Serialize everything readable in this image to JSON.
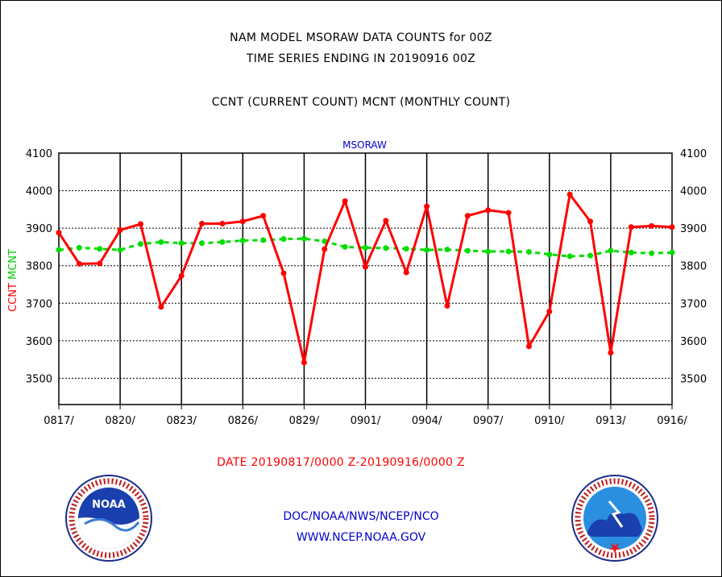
{
  "header": {
    "line1": "NAM MODEL MSORAW DATA COUNTS for 00Z",
    "line2": "TIME SERIES ENDING IN 20190916 00Z",
    "line3": "CCNT (CURRENT COUNT) MCNT (MONTHLY COUNT)"
  },
  "footer": {
    "date_range": "DATE 20190817/0000 Z-20190916/0000 Z",
    "org": "DOC/NOAA/NWS/NCEP/NCO",
    "url": "WWW.NCEP.NOAA.GOV"
  },
  "logos": {
    "left": {
      "name": "noaa-logo",
      "center_text": "NOAA"
    },
    "right": {
      "name": "nws-logo"
    }
  },
  "chart_data": {
    "type": "line",
    "title": "MSORAW",
    "ylabel_left": [
      {
        "text": "CCNT",
        "color": "#ff0000"
      },
      {
        "text": "MCNT",
        "color": "#00cc00"
      }
    ],
    "ylim": [
      3430,
      4100
    ],
    "yticks": [
      3500,
      3600,
      3700,
      3800,
      3900,
      4000,
      4100
    ],
    "ytick_labels": [
      "3500",
      "3600",
      "3700",
      "3800",
      "3900",
      "4000",
      "4100"
    ],
    "xlim": [
      "2019-08-17",
      "2019-09-16"
    ],
    "xticks": [
      "2019-08-17",
      "2019-08-20",
      "2019-08-23",
      "2019-08-26",
      "2019-08-29",
      "2019-09-01",
      "2019-09-04",
      "2019-09-07",
      "2019-09-10",
      "2019-09-13",
      "2019-09-16"
    ],
    "xtick_labels": [
      "0817/",
      "0820/",
      "0823/",
      "0826/",
      "0829/",
      "0901/",
      "0904/",
      "0907/",
      "0910/",
      "0913/",
      "0916/"
    ],
    "grid": true,
    "series": [
      {
        "name": "CCNT",
        "color": "#ff0000",
        "style": "solid",
        "x": [
          "2019-08-17",
          "2019-08-18",
          "2019-08-19",
          "2019-08-20",
          "2019-08-21",
          "2019-08-22",
          "2019-08-23",
          "2019-08-24",
          "2019-08-25",
          "2019-08-26",
          "2019-08-27",
          "2019-08-28",
          "2019-08-29",
          "2019-08-30",
          "2019-08-31",
          "2019-09-01",
          "2019-09-02",
          "2019-09-03",
          "2019-09-04",
          "2019-09-05",
          "2019-09-06",
          "2019-09-07",
          "2019-09-08",
          "2019-09-09",
          "2019-09-10",
          "2019-09-11",
          "2019-09-12",
          "2019-09-13",
          "2019-09-14",
          "2019-09-15",
          "2019-09-16"
        ],
        "values": [
          3888,
          3805,
          3806,
          3895,
          3911,
          3690,
          3773,
          3912,
          3912,
          3918,
          3933,
          3780,
          3542,
          3844,
          3972,
          3797,
          3920,
          3782,
          3958,
          3693,
          3933,
          3948,
          3941,
          3585,
          3678,
          3990,
          3918,
          3568,
          3903,
          3906,
          3903
        ]
      },
      {
        "name": "MCNT",
        "color": "#00dd00",
        "style": "dashed",
        "x": [
          "2019-08-17",
          "2019-08-18",
          "2019-08-19",
          "2019-08-20",
          "2019-08-21",
          "2019-08-22",
          "2019-08-23",
          "2019-08-24",
          "2019-08-25",
          "2019-08-26",
          "2019-08-27",
          "2019-08-28",
          "2019-08-29",
          "2019-08-30",
          "2019-08-31",
          "2019-09-01",
          "2019-09-02",
          "2019-09-03",
          "2019-09-04",
          "2019-09-05",
          "2019-09-06",
          "2019-09-07",
          "2019-09-08",
          "2019-09-09",
          "2019-09-10",
          "2019-09-11",
          "2019-09-12",
          "2019-09-13",
          "2019-09-14",
          "2019-09-15",
          "2019-09-16"
        ],
        "values": [
          3842,
          3848,
          3845,
          3842,
          3858,
          3863,
          3860,
          3860,
          3863,
          3867,
          3868,
          3871,
          3872,
          3865,
          3850,
          3848,
          3847,
          3845,
          3842,
          3843,
          3840,
          3838,
          3838,
          3837,
          3830,
          3825,
          3827,
          3840,
          3835,
          3833,
          3835
        ]
      }
    ]
  }
}
